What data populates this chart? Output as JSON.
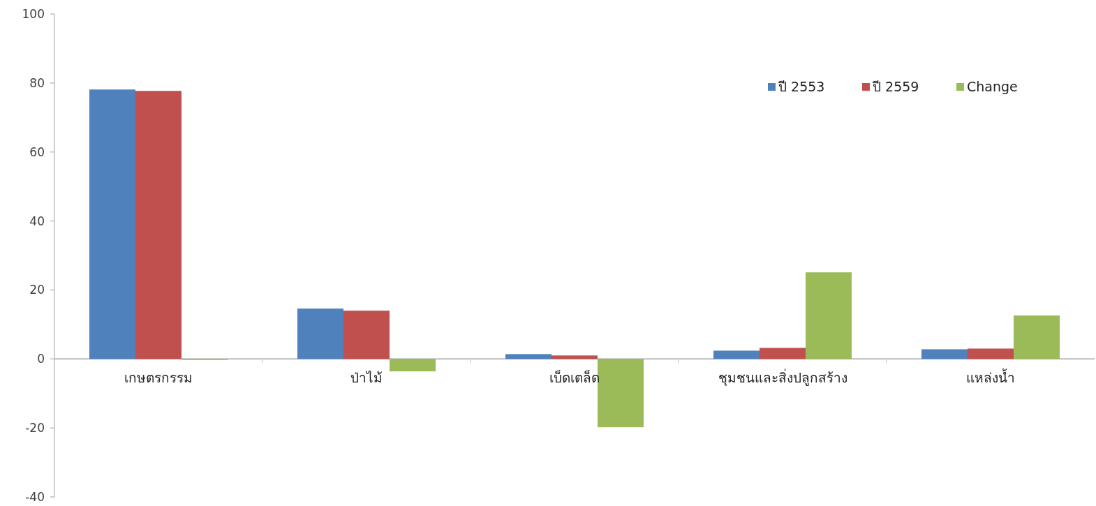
{
  "chart_data": {
    "type": "bar",
    "categories": [
      "เกษตรกรรม",
      "ป่าไม้",
      "เบ็ดเตล็ด",
      "ชุมชนและสิ่งปลูกสร้าง",
      "แหล่งน้ำ"
    ],
    "series": [
      {
        "name": "ปี 2553",
        "color": "#4f81bd",
        "values": [
          78.1,
          14.6,
          1.4,
          2.4,
          2.8
        ]
      },
      {
        "name": "ปี 2559",
        "color": "#c0504d",
        "values": [
          77.7,
          14.0,
          1.0,
          3.2,
          3.0
        ]
      },
      {
        "name": "Change",
        "color": "#9bbb59",
        "values": [
          -0.3,
          -3.6,
          -19.8,
          25.1,
          12.6
        ]
      }
    ],
    "ylim": [
      -40,
      100
    ],
    "yticks": [
      -40,
      -20,
      0,
      20,
      40,
      60,
      80,
      100
    ],
    "grid": false,
    "legend": "top right"
  }
}
